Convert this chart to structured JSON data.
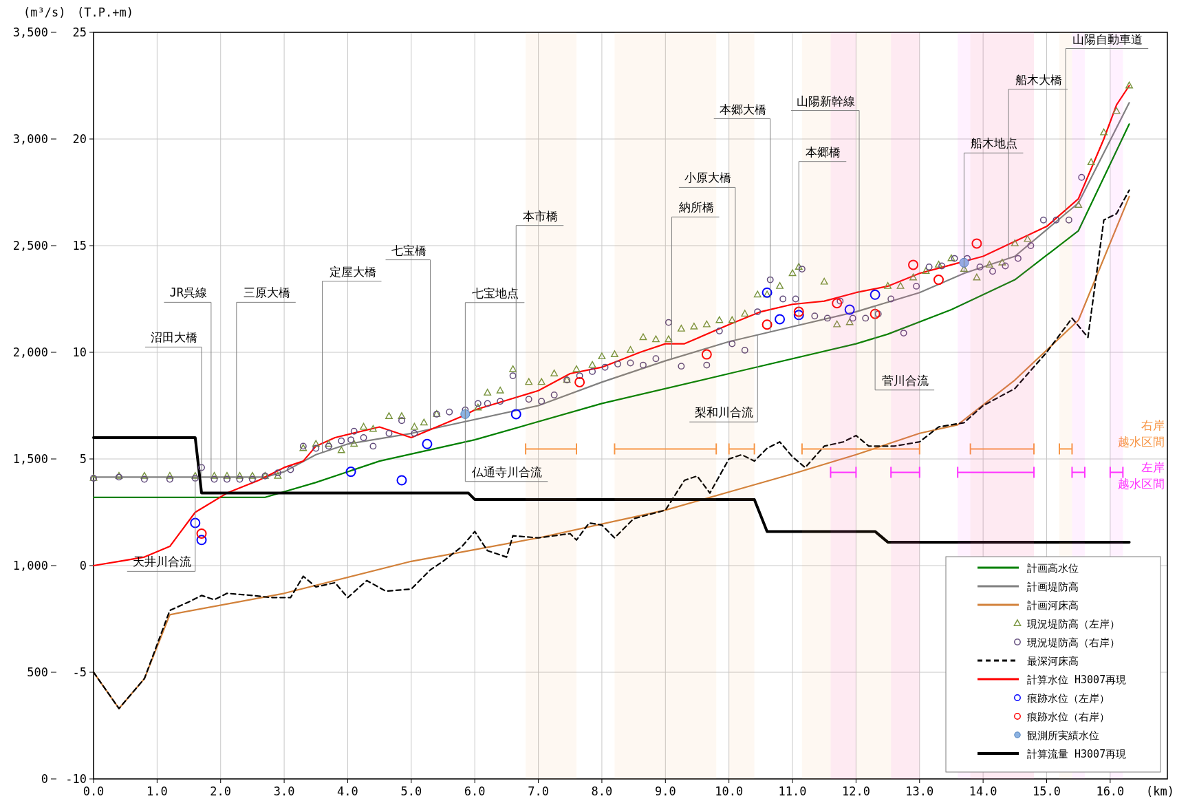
{
  "chart_data": {
    "type": "line",
    "xlabel": "(km)",
    "ylabel": "(T.P.+m)",
    "y2label": "(m³/s)",
    "xlim": [
      0,
      16.9
    ],
    "xticks": [
      {
        "value": 0,
        "label": "0.0"
      },
      {
        "value": 1,
        "label": "1.0"
      },
      {
        "value": 2,
        "label": "2.0"
      },
      {
        "value": 3,
        "label": "3.0"
      },
      {
        "value": 4,
        "label": "4.0"
      },
      {
        "value": 5,
        "label": "5.0"
      },
      {
        "value": 6,
        "label": "6.0"
      },
      {
        "value": 7,
        "label": "7.0"
      },
      {
        "value": 8,
        "label": "8.0"
      },
      {
        "value": 9,
        "label": "9.0"
      },
      {
        "value": 10,
        "label": "10.0"
      },
      {
        "value": 11,
        "label": "11.0"
      },
      {
        "value": 12,
        "label": "12.0"
      },
      {
        "value": 13,
        "label": "13.0"
      },
      {
        "value": 14,
        "label": "14.0"
      },
      {
        "value": 15,
        "label": "15.0"
      },
      {
        "value": 16,
        "label": "16.0"
      }
    ],
    "ylim": [
      -10,
      25
    ],
    "yticks": [
      -10,
      -5,
      0,
      5,
      10,
      15,
      20,
      25
    ],
    "y2lim": [
      0,
      3500
    ],
    "y2ticks": [
      0,
      500,
      {
        "value": 1000,
        "label": "1,000"
      },
      {
        "value": 1500,
        "label": "1,500"
      },
      {
        "value": 2000,
        "label": "2,000"
      },
      {
        "value": 2500,
        "label": "2,500"
      },
      {
        "value": 3000,
        "label": "3,000"
      },
      {
        "value": 3500,
        "label": "3,500"
      }
    ],
    "grid": true,
    "legend": "bottom right",
    "series": [
      {
        "name": "計画高水位",
        "type": "line",
        "color": "#008000",
        "x": [
          0,
          2.7,
          3.5,
          4.5,
          6,
          8,
          10,
          12,
          12.5,
          13.5,
          14.5,
          15.5,
          16.3
        ],
        "values": [
          3.2,
          3.2,
          3.9,
          4.9,
          5.9,
          7.6,
          9.0,
          10.4,
          10.85,
          12.0,
          13.4,
          15.7,
          20.7
        ]
      },
      {
        "name": "計画堤防高",
        "type": "line",
        "color": "#808080",
        "x": [
          0,
          2.7,
          3.0,
          3.5,
          4.0,
          5.0,
          7.0,
          8.0,
          9.0,
          10.0,
          11.0,
          12.0,
          13.0,
          13.7,
          14.5,
          15.5,
          16.3
        ],
        "values": [
          4.15,
          4.15,
          4.4,
          5.2,
          5.7,
          6.2,
          7.5,
          8.6,
          9.6,
          10.5,
          11.2,
          11.9,
          12.8,
          13.7,
          14.5,
          17.0,
          21.7
        ]
      },
      {
        "name": "計画河床高",
        "type": "line",
        "color": "#d2813a",
        "x": [
          0,
          0.4,
          0.8,
          1.2,
          3.0,
          5.0,
          7.0,
          9.0,
          10.0,
          11.0,
          12.0,
          13.0,
          13.6,
          14.5,
          15.5,
          16.3
        ],
        "values": [
          -5.0,
          -6.7,
          -5.3,
          -2.3,
          -1.3,
          0.2,
          1.3,
          2.6,
          3.45,
          4.3,
          5.2,
          6.2,
          6.6,
          8.7,
          11.5,
          17.3
        ]
      },
      {
        "name": "現況堤防高（左岸）",
        "type": "scatter",
        "marker": "triangle",
        "color": "#77933c",
        "x": [
          0,
          0.4,
          0.8,
          1.2,
          1.6,
          1.9,
          2.1,
          2.3,
          2.5,
          2.7,
          2.9,
          3.3,
          3.5,
          3.7,
          3.9,
          4.1,
          4.25,
          4.4,
          4.65,
          4.85,
          5.05,
          5.2,
          5.4,
          6.05,
          6.2,
          6.4,
          6.6,
          6.85,
          7.05,
          7.25,
          7.45,
          7.6,
          7.85,
          8.0,
          8.2,
          8.45,
          8.65,
          8.85,
          9.05,
          9.25,
          9.45,
          9.65,
          9.85,
          10.05,
          10.25,
          10.45,
          10.6,
          10.8,
          11.0,
          11.1,
          11.5,
          11.7,
          11.9,
          12.5,
          12.7,
          12.9,
          13.1,
          13.3,
          13.5,
          13.7,
          13.9,
          14.1,
          14.3,
          14.5,
          14.7,
          15.5,
          15.7,
          15.9,
          16.1,
          16.3
        ],
        "values": [
          4.1,
          4.2,
          4.2,
          4.2,
          4.2,
          4.2,
          4.2,
          4.2,
          4.2,
          4.2,
          4.2,
          5.5,
          5.7,
          5.7,
          5.4,
          5.7,
          6.5,
          6.4,
          7.0,
          7.0,
          6.5,
          6.7,
          7.1,
          7.4,
          8.1,
          8.2,
          9.2,
          8.6,
          8.6,
          9.0,
          8.7,
          9.2,
          9.4,
          9.8,
          9.9,
          10.1,
          10.7,
          10.6,
          10.6,
          11.1,
          11.2,
          11.3,
          11.5,
          11.5,
          11.8,
          12.7,
          12.7,
          13.1,
          13.7,
          14.0,
          13.3,
          11.3,
          11.4,
          13.1,
          13.1,
          13.5,
          13.8,
          14.1,
          14.4,
          13.9,
          13.5,
          14.1,
          14.2,
          15.1,
          15.3,
          16.9,
          18.9,
          20.3,
          21.3,
          22.5
        ]
      },
      {
        "name": "現況堤防高（右岸）",
        "type": "scatter",
        "marker": "circle",
        "color": "#604a7b",
        "x": [
          0,
          0.4,
          0.8,
          1.2,
          1.6,
          1.7,
          1.9,
          2.1,
          2.3,
          2.5,
          2.7,
          2.9,
          3.1,
          3.3,
          3.5,
          3.7,
          3.9,
          4.05,
          4.1,
          4.25,
          4.4,
          4.65,
          4.85,
          5.05,
          5.4,
          5.6,
          5.85,
          6.05,
          6.2,
          6.4,
          6.6,
          6.85,
          7.05,
          7.25,
          7.45,
          7.65,
          7.85,
          8.05,
          8.25,
          8.45,
          8.65,
          8.85,
          9.05,
          9.25,
          9.65,
          9.85,
          10.05,
          10.25,
          10.45,
          10.65,
          10.85,
          11.05,
          11.15,
          11.35,
          11.55,
          11.75,
          11.95,
          12.15,
          12.35,
          12.55,
          12.75,
          12.95,
          13.15,
          13.35,
          13.55,
          13.75,
          13.95,
          14.15,
          14.35,
          14.55,
          14.75,
          14.95,
          15.15,
          15.35,
          15.55
        ],
        "values": [
          4.1,
          4.15,
          4.05,
          4.05,
          4.1,
          4.6,
          4.05,
          4.05,
          4.05,
          4.05,
          4.2,
          4.35,
          4.5,
          5.6,
          5.5,
          5.6,
          5.85,
          5.9,
          6.3,
          6.0,
          5.6,
          6.2,
          6.8,
          6.2,
          7.1,
          7.2,
          7.3,
          7.6,
          7.6,
          7.7,
          8.9,
          7.8,
          7.7,
          8.0,
          8.7,
          8.9,
          9.1,
          9.3,
          9.45,
          9.5,
          9.4,
          9.7,
          11.4,
          9.35,
          9.4,
          11.0,
          10.4,
          10.1,
          11.9,
          13.4,
          12.5,
          12.5,
          13.9,
          11.7,
          11.6,
          12.4,
          11.6,
          11.6,
          11.8,
          12.5,
          10.9,
          13.1,
          14.0,
          14.05,
          14.4,
          14.4,
          14.0,
          13.8,
          14.05,
          14.4,
          15.0,
          16.2,
          16.2,
          16.2,
          18.2
        ]
      },
      {
        "name": "最深河床高",
        "type": "line",
        "line_style": "dashed",
        "color": "#000000",
        "x": [
          0,
          0.4,
          0.8,
          1.2,
          1.5,
          1.7,
          1.9,
          2.1,
          2.5,
          2.8,
          3.1,
          3.3,
          3.5,
          3.8,
          4.0,
          4.3,
          4.6,
          5.0,
          5.3,
          5.5,
          5.8,
          6.0,
          6.2,
          6.5,
          6.6,
          7.0,
          7.5,
          7.6,
          7.8,
          8.0,
          8.2,
          8.5,
          9.0,
          9.3,
          9.5,
          9.7,
          10.0,
          10.2,
          10.4,
          10.6,
          10.8,
          11.0,
          11.2,
          11.5,
          11.8,
          12.0,
          12.2,
          12.6,
          13.0,
          13.3,
          13.7,
          14.0,
          14.5,
          15.0,
          15.4,
          15.65,
          15.9,
          16.1,
          16.3
        ],
        "values": [
          -5.0,
          -6.7,
          -5.3,
          -2.1,
          -1.7,
          -1.4,
          -1.6,
          -1.3,
          -1.4,
          -1.5,
          -1.5,
          -0.5,
          -1.0,
          -0.8,
          -1.5,
          -0.7,
          -1.2,
          -1.1,
          -0.2,
          0.2,
          0.9,
          1.6,
          0.7,
          0.4,
          1.4,
          1.3,
          1.5,
          1.2,
          2.0,
          1.9,
          1.3,
          2.2,
          2.6,
          4.0,
          4.2,
          3.4,
          5.0,
          5.2,
          4.9,
          5.5,
          5.8,
          5.1,
          4.6,
          5.6,
          5.8,
          6.1,
          5.6,
          5.6,
          5.8,
          6.5,
          6.7,
          7.5,
          8.3,
          10.0,
          11.6,
          10.7,
          16.2,
          16.5,
          17.6
        ]
      },
      {
        "name": "計算水位 H3007再現",
        "type": "line",
        "color": "#ff0000",
        "x": [
          0,
          0.4,
          0.8,
          1.2,
          1.6,
          2.1,
          2.6,
          3.0,
          3.3,
          3.5,
          3.8,
          4.5,
          5.0,
          5.8,
          6.0,
          7.0,
          7.5,
          8.0,
          8.6,
          9.0,
          9.3,
          10.0,
          10.5,
          11.0,
          11.5,
          12.0,
          12.5,
          13.0,
          13.5,
          14.0,
          14.5,
          15.0,
          15.5,
          15.9,
          16.1,
          16.3
        ],
        "values": [
          0.0,
          0.2,
          0.4,
          0.9,
          2.5,
          3.4,
          4.0,
          4.6,
          4.9,
          5.6,
          6.0,
          6.5,
          6.0,
          7.0,
          7.3,
          8.2,
          9.0,
          9.3,
          10.0,
          10.4,
          10.4,
          11.3,
          11.9,
          12.25,
          12.4,
          12.8,
          13.1,
          13.7,
          14.1,
          14.5,
          15.2,
          15.9,
          17.2,
          20.0,
          21.6,
          22.5
        ]
      },
      {
        "name": "痕跡水位（左岸）",
        "type": "scatter",
        "marker": "circle",
        "color": "#0000ff",
        "x": [
          1.6,
          1.7,
          4.05,
          4.85,
          5.25,
          6.65,
          10.6,
          10.8,
          11.1,
          11.9,
          12.3
        ],
        "values": [
          2.0,
          1.2,
          4.4,
          4.0,
          5.7,
          7.1,
          12.8,
          11.55,
          11.75,
          12.0,
          12.7
        ]
      },
      {
        "name": "痕跡水位（右岸）",
        "type": "scatter",
        "marker": "circle",
        "color": "#ff0000",
        "x": [
          1.7,
          7.65,
          9.65,
          10.6,
          11.1,
          11.7,
          12.3,
          12.9,
          13.3,
          13.9
        ],
        "values": [
          1.5,
          8.6,
          9.9,
          11.3,
          11.9,
          12.3,
          11.8,
          14.1,
          13.4,
          15.1
        ]
      },
      {
        "name": "観測所実績水位",
        "type": "scatter",
        "marker": "circle",
        "color": "#8db3e2",
        "x": [
          5.85,
          13.7
        ],
        "values": [
          7.1,
          14.2
        ]
      },
      {
        "name": "計算流量 H3007再現",
        "type": "line",
        "axis": "y2",
        "color": "#000000",
        "x": [
          0,
          1.6,
          1.7,
          5.9,
          6.0,
          10.4,
          10.6,
          12.3,
          12.5,
          16.3
        ],
        "values": [
          1600,
          1600,
          1340,
          1340,
          1310,
          1310,
          1160,
          1160,
          1110,
          1110
        ]
      }
    ],
    "bands": [
      {
        "axis": "x",
        "from": 6.8,
        "to": 7.6,
        "color": "#f79646"
      },
      {
        "axis": "x",
        "from": 8.2,
        "to": 9.8,
        "color": "#f79646"
      },
      {
        "axis": "x",
        "from": 10.0,
        "to": 10.4,
        "color": "#f79646"
      },
      {
        "axis": "x",
        "from": 11.15,
        "to": 13.0,
        "color": "#f79646"
      },
      {
        "axis": "x",
        "from": 13.8,
        "to": 14.8,
        "color": "#f79646"
      },
      {
        "axis": "x",
        "from": 15.2,
        "to": 15.4,
        "color": "#f79646",
        "label": "右岸越水区間"
      },
      {
        "axis": "x",
        "from": 11.6,
        "to": 12.0,
        "color": "#ff33ff"
      },
      {
        "axis": "x",
        "from": 12.55,
        "to": 13.0,
        "color": "#ff33ff"
      },
      {
        "axis": "x",
        "from": 13.6,
        "to": 14.8,
        "color": "#ff33ff"
      },
      {
        "axis": "x",
        "from": 15.4,
        "to": 15.6,
        "color": "#ff33ff"
      },
      {
        "axis": "x",
        "from": 16.0,
        "to": 16.2,
        "color": "#ff33ff",
        "label": "左岸越水区間"
      }
    ],
    "annotations": [
      {
        "text": "沼田大橋",
        "x": 1.7,
        "y": 4.15
      },
      {
        "text": "JR呉線",
        "x": 1.85,
        "y": 4.15
      },
      {
        "text": "三原大橋",
        "x": 2.25,
        "y": 4.15
      },
      {
        "text": "定屋大橋",
        "x": 3.6,
        "y": 5.3
      },
      {
        "text": "七宝橋",
        "x": 5.3,
        "y": 6.4
      },
      {
        "text": "七宝地点",
        "x": 5.85,
        "y": 6.75
      },
      {
        "text": "本市橋",
        "x": 6.65,
        "y": 7.3
      },
      {
        "text": "納所橋",
        "x": 9.1,
        "y": 9.7
      },
      {
        "text": "小原大橋",
        "x": 10.1,
        "y": 10.6
      },
      {
        "text": "本郷大橋",
        "x": 10.65,
        "y": 10.95
      },
      {
        "text": "本郷橋",
        "x": 11.1,
        "y": 11.3
      },
      {
        "text": "山陽新幹線",
        "x": 12.05,
        "y": 11.95
      },
      {
        "text": "船木地点",
        "x": 13.7,
        "y": 13.7
      },
      {
        "text": "船木大橋",
        "x": 14.4,
        "y": 14.4
      },
      {
        "text": "山陽自動車道",
        "x": 15.3,
        "y": 16.5
      },
      {
        "text": "天井川合流",
        "x": 1.6,
        "y": 4.15
      },
      {
        "text": "仏通寺川合流",
        "x": 5.85,
        "y": 6.75
      },
      {
        "text": "梨和川合流",
        "x": 10.45,
        "y": 10.8
      },
      {
        "text": "菅川合流",
        "x": 12.3,
        "y": 12.2
      }
    ]
  }
}
